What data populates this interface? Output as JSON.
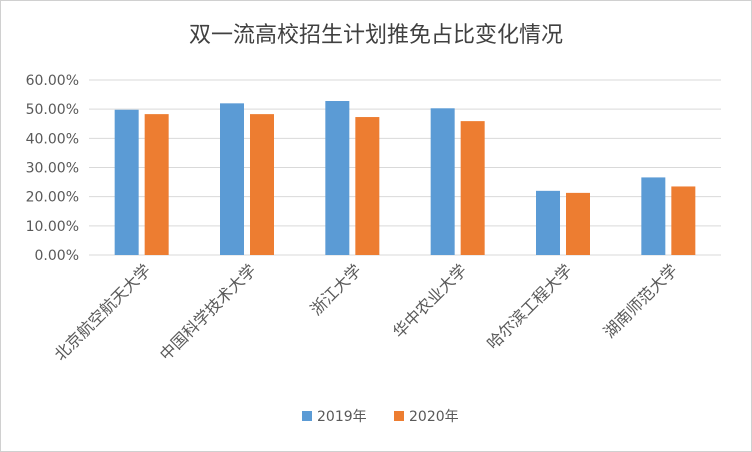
{
  "chart_data": {
    "type": "bar",
    "title": "双一流高校招生计划推免占比变化情况",
    "categories": [
      "北京航空航天大学",
      "中国科学技术大学",
      "浙江大学",
      "华中农业大学",
      "哈尔滨工程大学",
      "湖南师范大学"
    ],
    "series": [
      {
        "name": "2019年",
        "values": [
          49.8,
          52.0,
          52.8,
          50.3,
          22.0,
          26.6
        ],
        "color": "#5B9BD5"
      },
      {
        "name": "2020年",
        "values": [
          48.3,
          48.3,
          47.3,
          45.9,
          21.3,
          23.5
        ],
        "color": "#ED7D31"
      }
    ],
    "ylim": [
      0,
      60
    ],
    "yticks": [
      "0.00%",
      "10.00%",
      "20.00%",
      "30.00%",
      "40.00%",
      "50.00%",
      "60.00%"
    ],
    "xlabel": "",
    "ylabel": "",
    "grid": true,
    "legend_position": "bottom"
  }
}
